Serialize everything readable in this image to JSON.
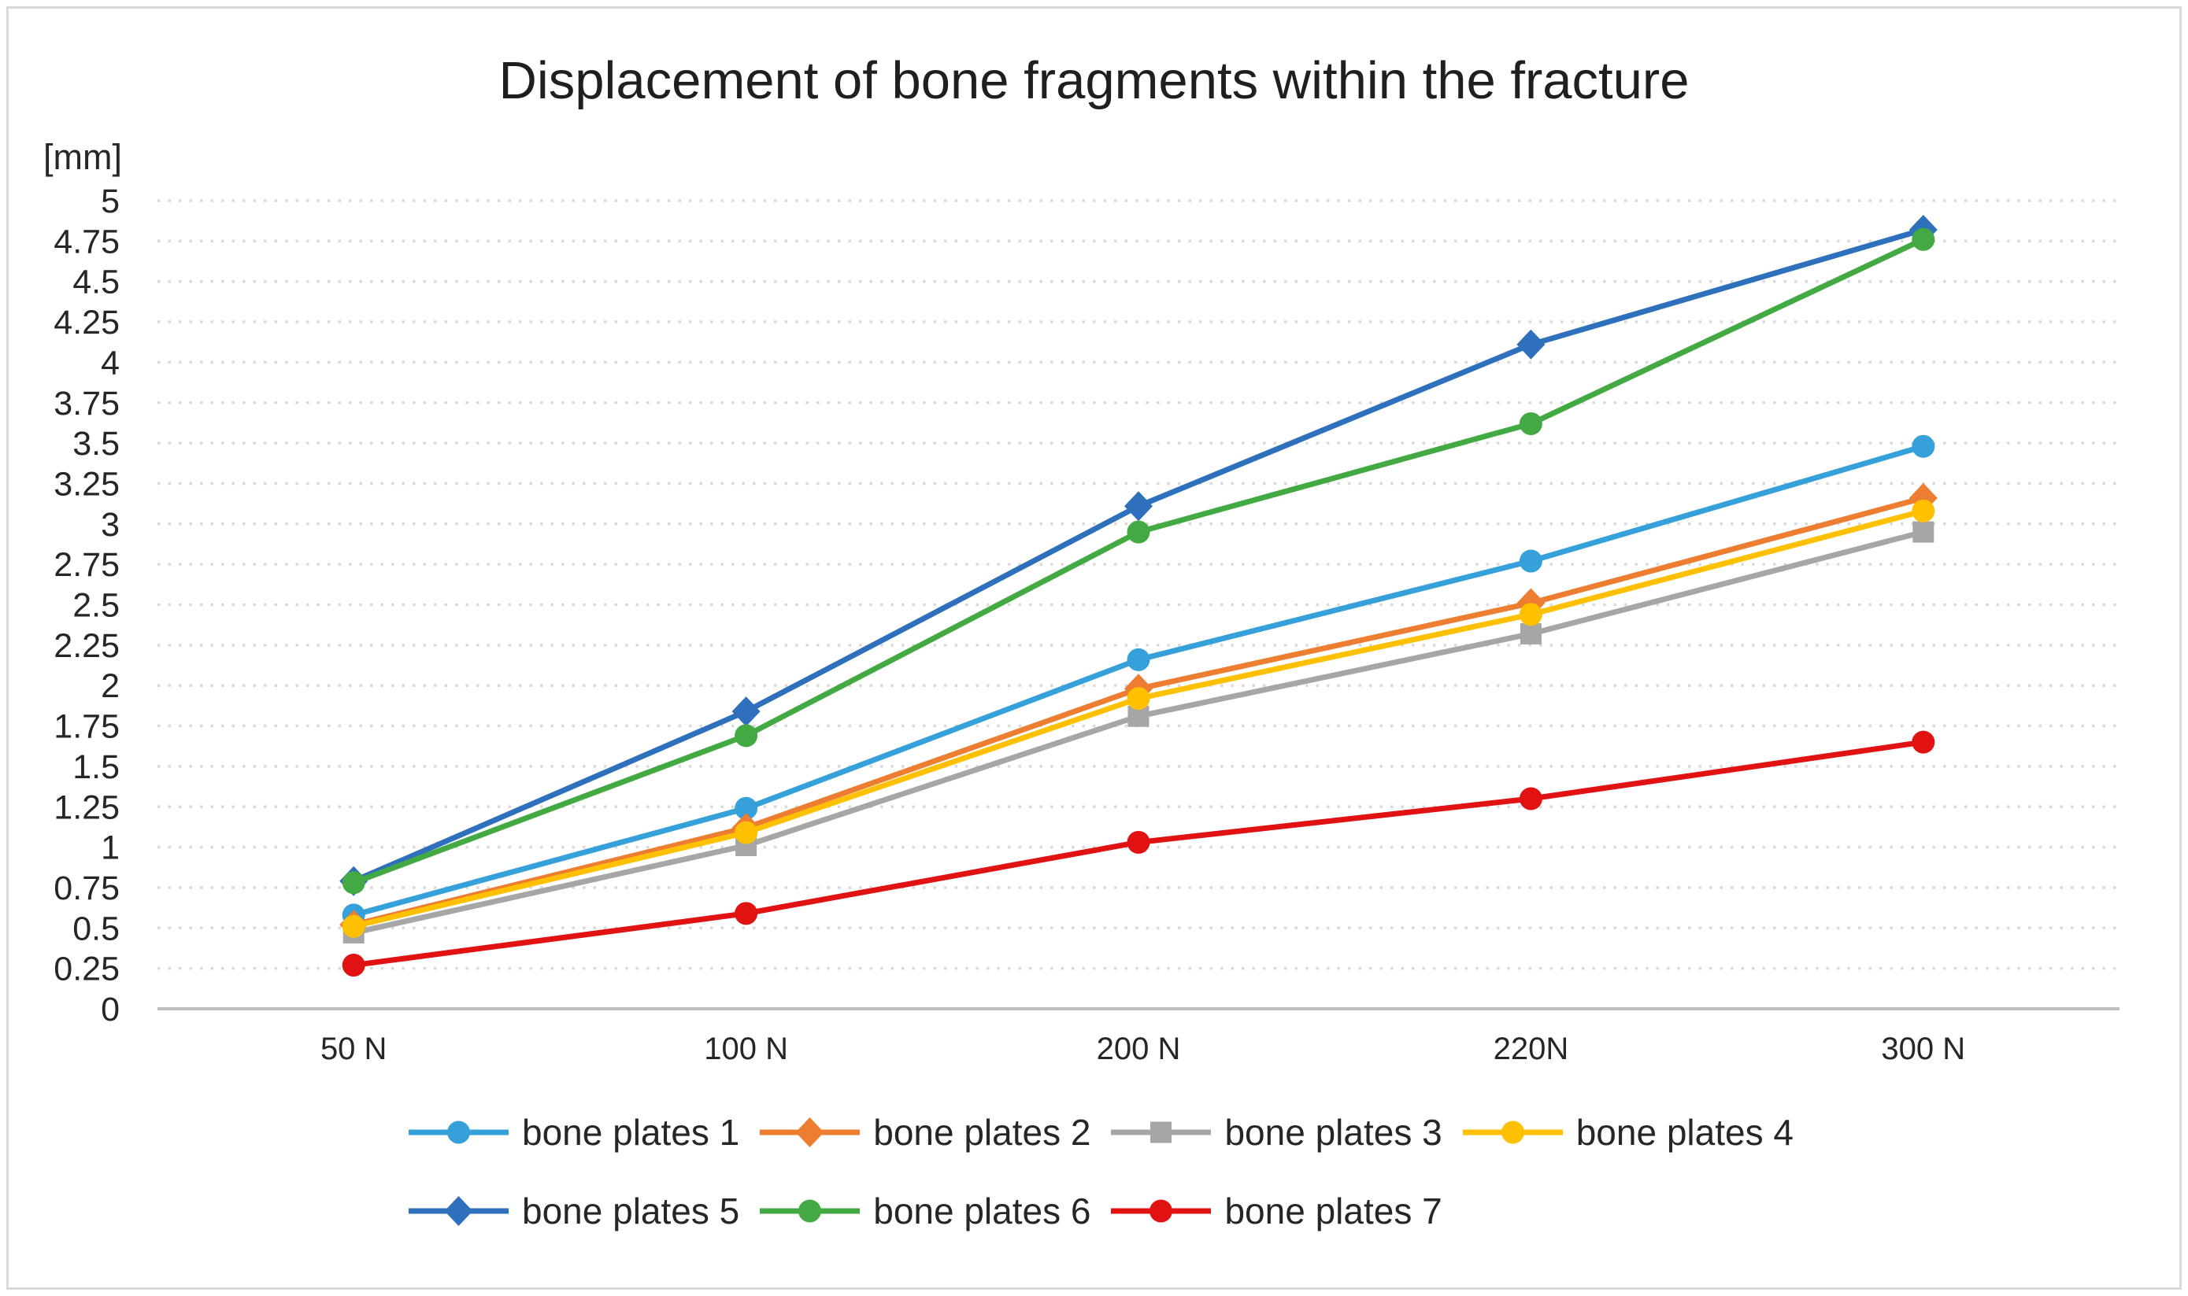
{
  "chart_data": {
    "type": "line",
    "title": "Displacement of bone fragments within the fracture",
    "y_axis": {
      "unit_label": "[mm]",
      "min": 0,
      "max": 5,
      "tick_step": 0.25,
      "tick_labels": [
        "0",
        "0.25",
        "0.5",
        "0.75",
        "1",
        "1.25",
        "1.5",
        "1.75",
        "2",
        "2.25",
        "2.5",
        "2.75",
        "3",
        "3.25",
        "3.5",
        "3.75",
        "4",
        "4.25",
        "4.5",
        "4.75",
        "5"
      ]
    },
    "x_axis": {
      "categories": [
        "50 N",
        "100 N",
        "200 N",
        "220N",
        "300 N"
      ]
    },
    "grid": "horizontal-dotted",
    "legend_position": "bottom",
    "legend_rows": [
      4,
      3
    ],
    "series": [
      {
        "name": "bone plates 1",
        "color": "#35A0D9",
        "marker": "circle",
        "values": [
          0.58,
          1.24,
          2.16,
          2.77,
          3.48
        ]
      },
      {
        "name": "bone plates 2",
        "color": "#ED7D31",
        "marker": "diamond",
        "values": [
          0.52,
          1.12,
          1.98,
          2.51,
          3.16
        ]
      },
      {
        "name": "bone plates 3",
        "color": "#A6A6A6",
        "marker": "square",
        "values": [
          0.47,
          1.01,
          1.81,
          2.32,
          2.95
        ]
      },
      {
        "name": "bone plates 4",
        "color": "#FFC000",
        "marker": "circle",
        "values": [
          0.51,
          1.09,
          1.92,
          2.44,
          3.08
        ]
      },
      {
        "name": "bone plates 5",
        "color": "#2E70BC",
        "marker": "diamond",
        "values": [
          0.79,
          1.84,
          3.11,
          4.11,
          4.82
        ]
      },
      {
        "name": "bone plates 6",
        "color": "#43AA43",
        "marker": "circle",
        "values": [
          0.78,
          1.69,
          2.95,
          3.62,
          4.76
        ]
      },
      {
        "name": "bone plates 7",
        "color": "#E01212",
        "marker": "circle",
        "values": [
          0.27,
          0.59,
          1.03,
          1.3,
          1.65
        ]
      }
    ],
    "styles": {
      "background": "#FFFFFF",
      "frame_border_color": "#D9D9D9",
      "gridline_color": "#D9D9D9",
      "axis_line_color": "#BFBFBF",
      "tick_text_color": "#262626",
      "title_text_color": "#1F1F1F"
    }
  }
}
